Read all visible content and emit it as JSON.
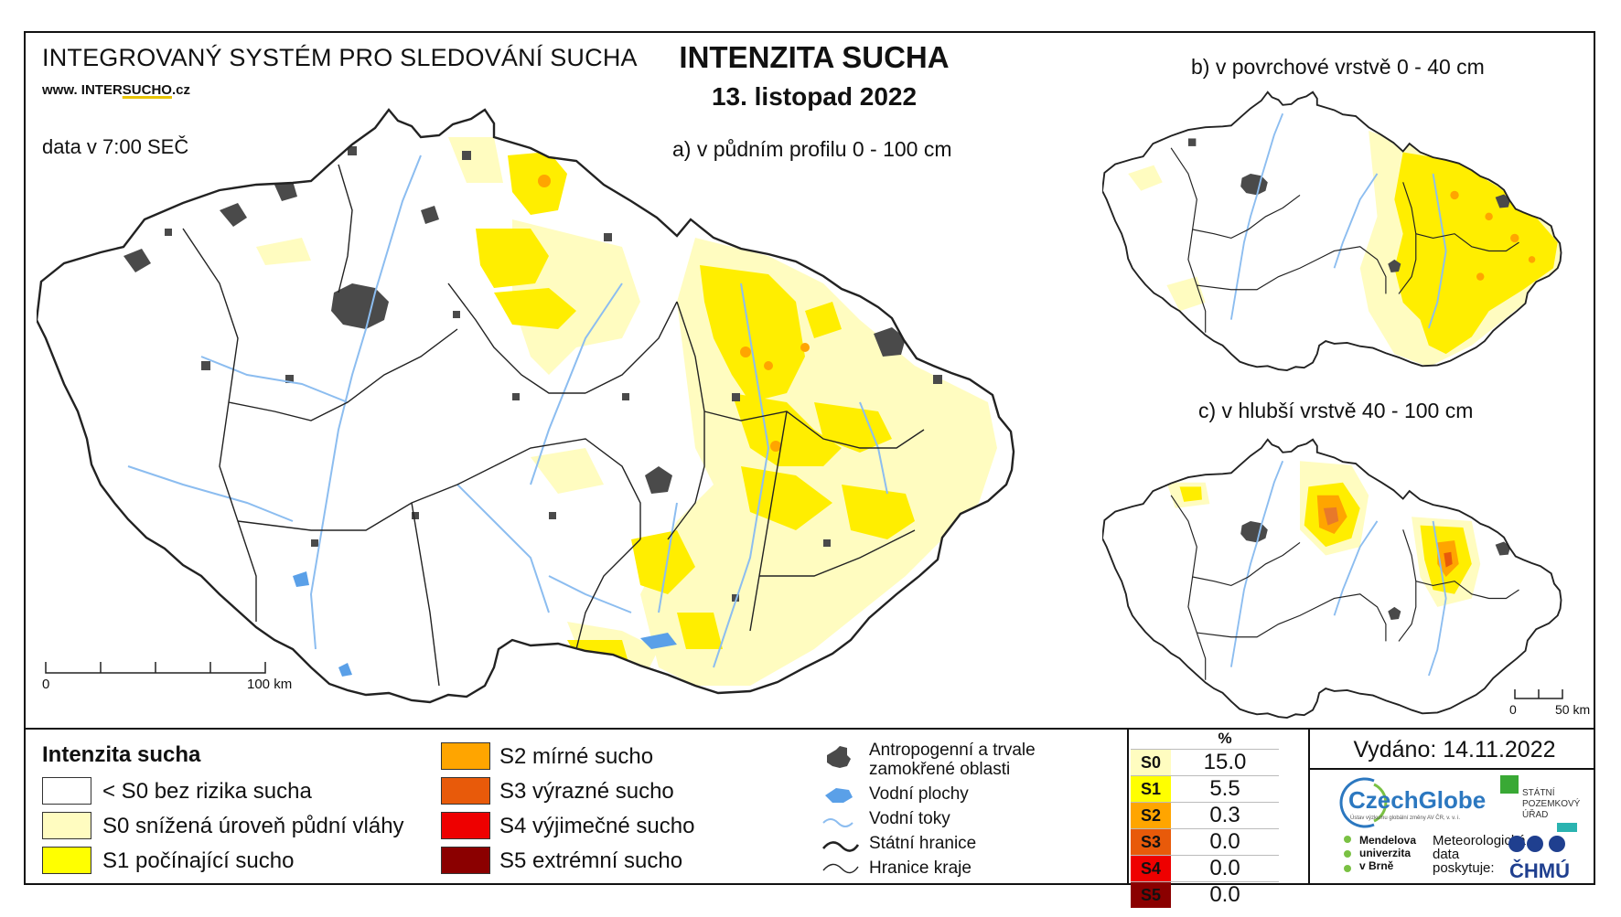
{
  "header": {
    "system": "INTEGROVANÝ SYSTÉM PRO SLEDOVÁNÍ SUCHA",
    "web_prefix": "www. INTER",
    "web_underlined": "SUCHO",
    "web_suffix": ".cz",
    "data_time": "data v 7:00 SEČ",
    "title": "INTENZITA SUCHA",
    "date": "13. listopad 2022"
  },
  "maps": {
    "a_label": "a) v půdním profilu 0 - 100 cm",
    "b_label": "b) v povrchové vrstvě 0 - 40 cm",
    "c_label": "c) v hlubší vrstvě 40 - 100 cm",
    "scale_main": {
      "zero": "0",
      "end": "100 km"
    },
    "scale_small": {
      "zero": "0",
      "end": "50 km"
    }
  },
  "legend": {
    "title": "Intenzita sucha",
    "classes": [
      {
        "label": "< S0 bez rizika sucha",
        "color": "#ffffff"
      },
      {
        "label": "S0 snížená úroveň půdní vláhy",
        "color": "#fffcc0"
      },
      {
        "label": "S1 počínající sucho",
        "color": "#ffff00"
      },
      {
        "label": "S2 mírné sucho",
        "color": "#ffa500"
      },
      {
        "label": "S3 výrazné sucho",
        "color": "#e85a0a"
      },
      {
        "label": "S4 výjimečné sucho",
        "color": "#ee0000"
      },
      {
        "label": "S5 extrémní sucho",
        "color": "#8b0000"
      }
    ],
    "symbols": [
      {
        "label": "Antropogenní a trvale zamokřené oblasti",
        "icon": "urban-area-icon"
      },
      {
        "label": "Vodní plochy",
        "icon": "water-body-icon"
      },
      {
        "label": "Vodní toky",
        "icon": "river-icon"
      },
      {
        "label": "Státní hranice",
        "icon": "state-border-icon"
      },
      {
        "label": "Hranice kraje",
        "icon": "region-border-icon"
      }
    ]
  },
  "stats": {
    "header": "%",
    "rows": [
      {
        "code": "S0",
        "value": "15.0",
        "color": "#fffcc0"
      },
      {
        "code": "S1",
        "value": "5.5",
        "color": "#ffff00"
      },
      {
        "code": "S2",
        "value": "0.3",
        "color": "#ffa500"
      },
      {
        "code": "S3",
        "value": "0.0",
        "color": "#e85a0a"
      },
      {
        "code": "S4",
        "value": "0.0",
        "color": "#ee0000"
      },
      {
        "code": "S5",
        "value": "0.0",
        "color": "#8b0000"
      }
    ]
  },
  "footer": {
    "issued": "Vydáno: 14.11.2022",
    "czechglobe": "CzechGlobe",
    "czechglobe_sub": "Ústav výzkumu globální změny AV ČR, v. v. i.",
    "mendel": [
      "Mendelova",
      "univerzita",
      "v Brně"
    ],
    "meteo": [
      "Meteorologická",
      "data",
      "poskytuje:"
    ],
    "chmu": "ČHMÚ",
    "spu": [
      "STÁTNÍ",
      "POZEMKOVÝ",
      "ÚŘAD"
    ]
  }
}
